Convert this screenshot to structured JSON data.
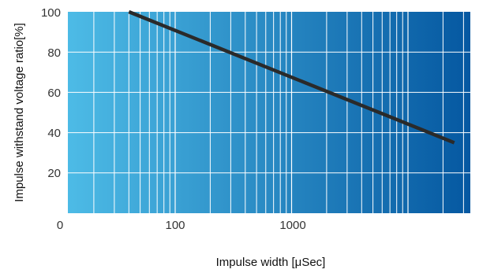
{
  "chart_data": {
    "type": "line",
    "title": "",
    "xlabel": "Impulse width [μSec]",
    "ylabel": "Impulse withstand voltage ratio[%]",
    "x_scale": "log",
    "x_tick_labels": [
      "0",
      "100",
      "1000"
    ],
    "y_ticks": [
      20,
      40,
      60,
      80,
      100
    ],
    "y_tick_labels": [
      "20",
      "40",
      "60",
      "80",
      "100"
    ],
    "ylim": [
      0,
      100
    ],
    "grid": true,
    "legend": "none",
    "series": [
      {
        "x": [
          40,
          25000
        ],
        "y": [
          100,
          35
        ]
      }
    ],
    "colors": {
      "background_left": "#4dbbe6",
      "background_right": "#0558a1",
      "grid": "#ffffff",
      "line": "#2a2a2a"
    }
  }
}
